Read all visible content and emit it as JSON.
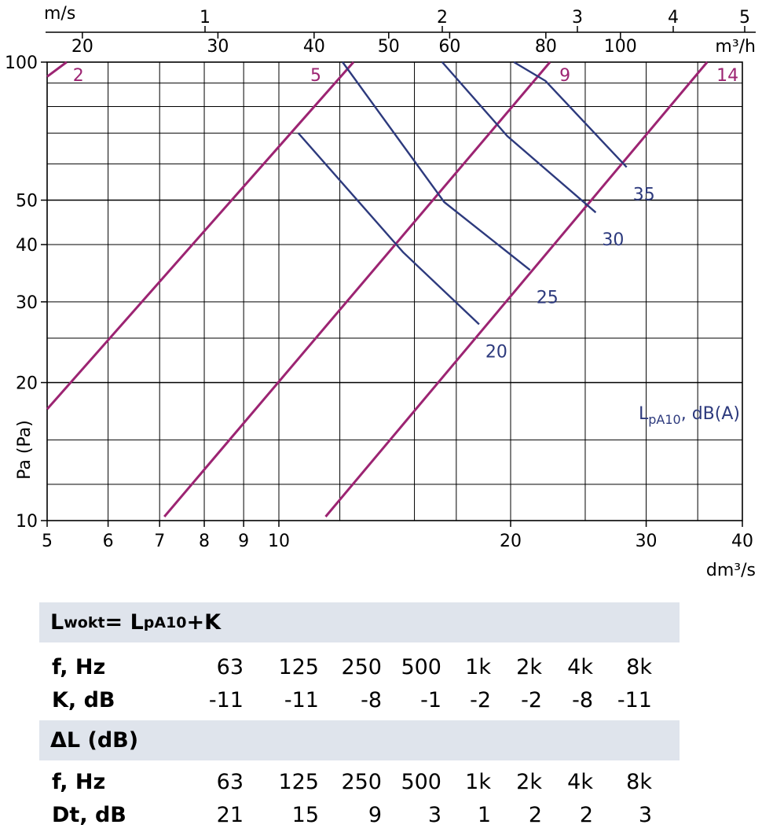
{
  "chart_data": {
    "type": "line",
    "x_axis": {
      "label": "dm³/s",
      "scale": "log",
      "range": [
        5,
        40
      ],
      "ticks": [
        "5",
        "6",
        "7",
        "8",
        "9",
        "10",
        "20",
        "30",
        "40"
      ]
    },
    "y_axis": {
      "label": "Pa (Pa)",
      "scale": "log",
      "range": [
        10,
        100
      ],
      "ticks": [
        "10",
        "20",
        "30",
        "40",
        "50",
        "100"
      ]
    },
    "top_axis_velocity": {
      "label": "m/s",
      "ticks": [
        "1",
        "2",
        "3",
        "4",
        "5"
      ]
    },
    "top_axis_flow": {
      "label": "m³/h",
      "ticks": [
        "20",
        "30",
        "40",
        "50",
        "60",
        "80",
        "100"
      ]
    },
    "grid": true,
    "velocity_lines": [
      {
        "label": "2",
        "points": [
          [
            5.0,
            93
          ],
          [
            5.3,
            100
          ]
        ]
      },
      {
        "label": "5",
        "points": [
          [
            5.0,
            17.5
          ],
          [
            12.5,
            100
          ]
        ]
      },
      {
        "label": "9",
        "points": [
          [
            7.1,
            10.2
          ],
          [
            22.5,
            100
          ]
        ]
      },
      {
        "label": "14",
        "points": [
          [
            11.5,
            10.2
          ],
          [
            36.0,
            100
          ]
        ]
      }
    ],
    "sound_lines": [
      {
        "label": "20",
        "points": [
          [
            10.6,
            70
          ],
          [
            14.5,
            38.5
          ],
          [
            18.2,
            26.8
          ]
        ]
      },
      {
        "label": "25",
        "points": [
          [
            12.1,
            100
          ],
          [
            16.4,
            49.5
          ],
          [
            21.2,
            35.2
          ]
        ]
      },
      {
        "label": "30",
        "points": [
          [
            16.3,
            100
          ],
          [
            19.8,
            69
          ],
          [
            25.8,
            47
          ]
        ]
      },
      {
        "label": "35",
        "points": [
          [
            20.2,
            100
          ],
          [
            22.2,
            91
          ],
          [
            28.3,
            59
          ]
        ]
      }
    ],
    "annotations": {
      "sound_unit_main": "L",
      "sound_unit_sub": "pA10",
      "sound_unit_tail": ", dB(A)"
    }
  },
  "table": {
    "section1": {
      "title_main": "L",
      "title_sub": "wokt",
      "title_mid": "= L",
      "title_sub2": "pA10",
      "title_tail": "+K"
    },
    "f_label": "f, Hz",
    "frequencies": [
      "63",
      "125",
      "250",
      "500",
      "1k",
      "2k",
      "4k",
      "8k"
    ],
    "k_label": "K, dB",
    "k_values": [
      "-11",
      "-11",
      "-8",
      "-1",
      "-2",
      "-2",
      "-8",
      "-11"
    ],
    "section2": {
      "title": "ΔL (dB)"
    },
    "f_label2": "f, Hz",
    "dt_label": "Dt, dB",
    "dt_values": [
      "21",
      "15",
      "9",
      "3",
      "1",
      "2",
      "2",
      "3"
    ]
  },
  "colors": {
    "velocity": "#9c2472",
    "sound": "#2d3a7d",
    "grid": "#000000",
    "header_bg": "#dfe4ec"
  }
}
